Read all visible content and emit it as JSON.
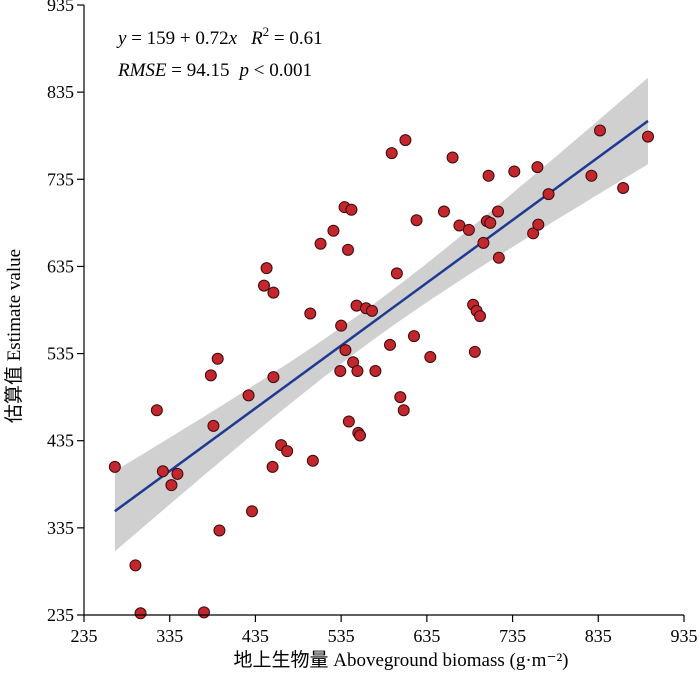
{
  "chart_data": {
    "type": "scatter",
    "xlabel": "地上生物量 Aboveground biomass (g·m⁻²)",
    "ylabel": "估算值 Estimate value",
    "xlim": [
      235,
      935
    ],
    "ylim": [
      235,
      935
    ],
    "x_ticks": [
      "235",
      "335",
      "435",
      "535",
      "635",
      "735",
      "835",
      "935"
    ],
    "y_ticks": [
      "235",
      "335",
      "435",
      "535",
      "635",
      "735",
      "835",
      "935"
    ],
    "grid": false,
    "annotation": {
      "line1_y": "y",
      "line1_eq": " = 159 + 0.72",
      "line1_x": "x",
      "line1_r": "R",
      "line1_sup": "2",
      "line1_rval": " = 0.61",
      "line2_rmse": "RMSE",
      "line2_rmseval": " = 94.15",
      "line2_p": "p",
      "line2_pval": " < 0.001"
    },
    "regression": {
      "intercept": 159,
      "slope": 0.72,
      "x_start": 271,
      "x_end": 893
    },
    "colors": {
      "point_fill": "#c1272d",
      "point_stroke": "#3a0a0c",
      "line": "#1f3a93",
      "band": "#c8c8c8"
    },
    "points": [
      {
        "x": 271,
        "y": 405
      },
      {
        "x": 295,
        "y": 292
      },
      {
        "x": 301,
        "y": 237
      },
      {
        "x": 320,
        "y": 470
      },
      {
        "x": 327,
        "y": 400
      },
      {
        "x": 337,
        "y": 384
      },
      {
        "x": 344,
        "y": 397
      },
      {
        "x": 375,
        "y": 238
      },
      {
        "x": 383,
        "y": 510
      },
      {
        "x": 386,
        "y": 452
      },
      {
        "x": 391,
        "y": 529
      },
      {
        "x": 393,
        "y": 332
      },
      {
        "x": 427,
        "y": 487
      },
      {
        "x": 431,
        "y": 354
      },
      {
        "x": 445,
        "y": 613
      },
      {
        "x": 448,
        "y": 633
      },
      {
        "x": 455,
        "y": 405
      },
      {
        "x": 456,
        "y": 605
      },
      {
        "x": 456,
        "y": 508
      },
      {
        "x": 465,
        "y": 430
      },
      {
        "x": 472,
        "y": 423
      },
      {
        "x": 499,
        "y": 581
      },
      {
        "x": 502,
        "y": 412
      },
      {
        "x": 511,
        "y": 661
      },
      {
        "x": 526,
        "y": 676
      },
      {
        "x": 534,
        "y": 515
      },
      {
        "x": 535,
        "y": 567
      },
      {
        "x": 539,
        "y": 703
      },
      {
        "x": 540,
        "y": 539
      },
      {
        "x": 543,
        "y": 654
      },
      {
        "x": 544,
        "y": 457
      },
      {
        "x": 547,
        "y": 700
      },
      {
        "x": 549,
        "y": 525
      },
      {
        "x": 553,
        "y": 590
      },
      {
        "x": 554,
        "y": 515
      },
      {
        "x": 555,
        "y": 444
      },
      {
        "x": 557,
        "y": 441
      },
      {
        "x": 564,
        "y": 587
      },
      {
        "x": 571,
        "y": 584
      },
      {
        "x": 575,
        "y": 515
      },
      {
        "x": 592,
        "y": 545
      },
      {
        "x": 594,
        "y": 765
      },
      {
        "x": 600,
        "y": 627
      },
      {
        "x": 604,
        "y": 485
      },
      {
        "x": 608,
        "y": 470
      },
      {
        "x": 610,
        "y": 780
      },
      {
        "x": 620,
        "y": 555
      },
      {
        "x": 623,
        "y": 688
      },
      {
        "x": 639,
        "y": 531
      },
      {
        "x": 655,
        "y": 698
      },
      {
        "x": 665,
        "y": 760
      },
      {
        "x": 673,
        "y": 682
      },
      {
        "x": 684,
        "y": 677
      },
      {
        "x": 689,
        "y": 591
      },
      {
        "x": 691,
        "y": 537
      },
      {
        "x": 693,
        "y": 584
      },
      {
        "x": 697,
        "y": 578
      },
      {
        "x": 701,
        "y": 662
      },
      {
        "x": 705,
        "y": 687
      },
      {
        "x": 707,
        "y": 739
      },
      {
        "x": 709,
        "y": 685
      },
      {
        "x": 718,
        "y": 698
      },
      {
        "x": 719,
        "y": 645
      },
      {
        "x": 737,
        "y": 744
      },
      {
        "x": 759,
        "y": 673
      },
      {
        "x": 764,
        "y": 749
      },
      {
        "x": 765,
        "y": 683
      },
      {
        "x": 777,
        "y": 718
      },
      {
        "x": 827,
        "y": 739
      },
      {
        "x": 837,
        "y": 791
      },
      {
        "x": 864,
        "y": 725
      },
      {
        "x": 893,
        "y": 784
      }
    ]
  }
}
